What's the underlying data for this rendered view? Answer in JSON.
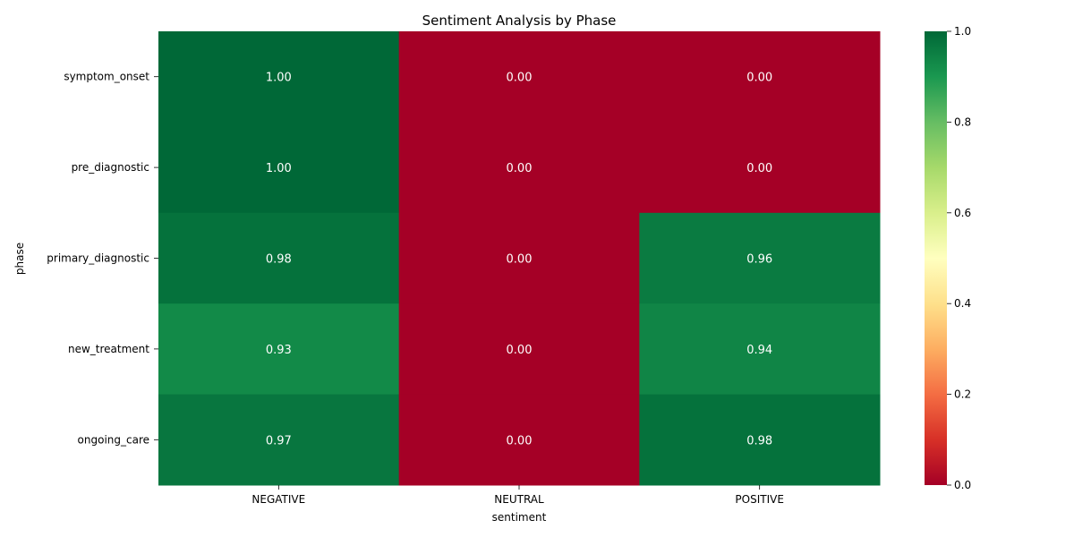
{
  "chart_data": {
    "type": "heatmap",
    "title": "Sentiment Analysis by Phase",
    "xlabel": "sentiment",
    "ylabel": "phase",
    "columns": [
      "NEGATIVE",
      "NEUTRAL",
      "POSITIVE"
    ],
    "rows": [
      "symptom_onset",
      "pre_diagnostic",
      "primary_diagnostic",
      "new_treatment",
      "ongoing_care"
    ],
    "values": [
      [
        1.0,
        0.0,
        0.0
      ],
      [
        1.0,
        0.0,
        0.0
      ],
      [
        0.98,
        0.0,
        0.96
      ],
      [
        0.93,
        0.0,
        0.94
      ],
      [
        0.97,
        0.0,
        0.98
      ]
    ],
    "value_format": "0.00",
    "colormap": "RdYlGn",
    "colorbar": {
      "range": [
        0,
        1
      ],
      "ticks": [
        "0.0",
        "0.2",
        "0.4",
        "0.6",
        "0.8",
        "1.0"
      ]
    },
    "grid": false,
    "legend": "colorbar-right"
  }
}
